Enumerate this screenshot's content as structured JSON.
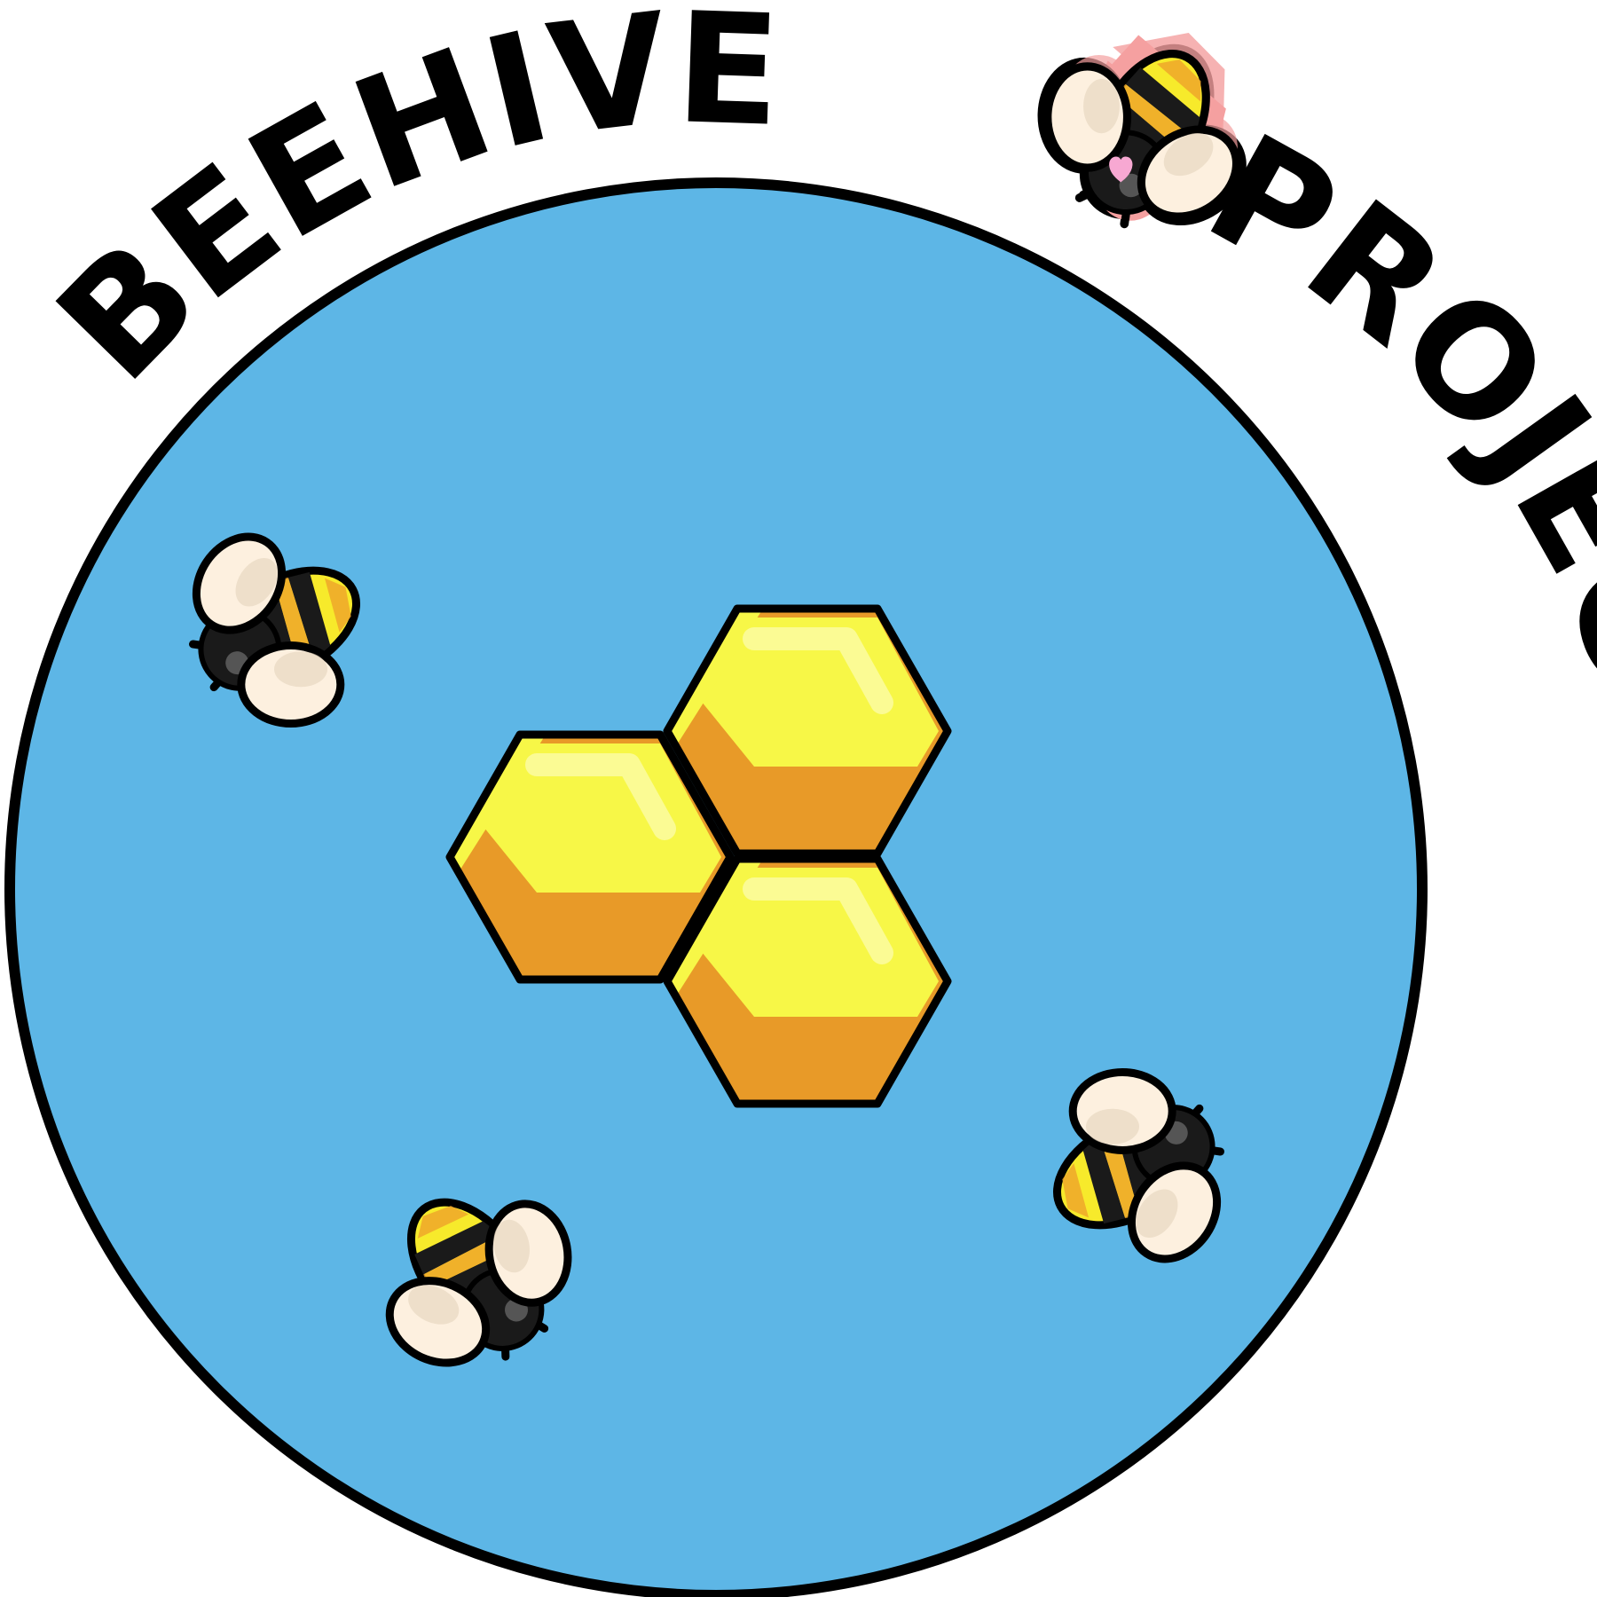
{
  "badge": {
    "title_left": "BEEHIVE",
    "title_right": "PROJECT",
    "colors": {
      "circle_fill": "#5db6e6",
      "outline": "#000000",
      "honey_light": "#f7f747",
      "honey_dark": "#e89a28",
      "honey_highlight": "#fbfb94",
      "wing": "#fdf0df",
      "wing_shade": "#e7d7c0",
      "bee_body": "#1a1a1a",
      "bee_stripe_yellow": "#f7ea2b",
      "bee_stripe_orange": "#eda32a",
      "sticker_outline": "#f5a0a0",
      "heart": "#f7a8d2"
    },
    "icons": [
      "honeycomb-icon",
      "bee-icon",
      "heart-icon"
    ]
  }
}
